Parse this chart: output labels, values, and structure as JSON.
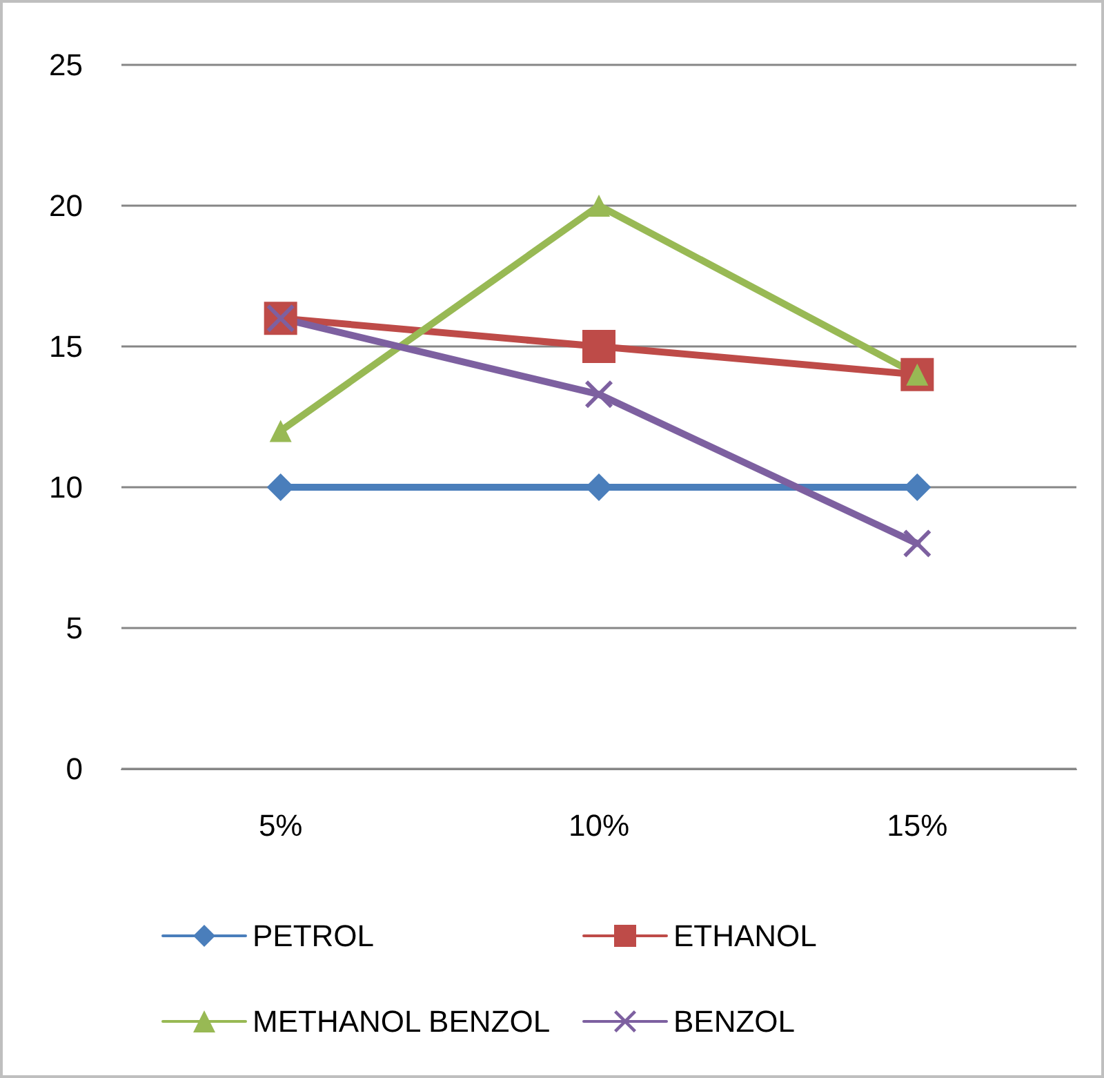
{
  "chart_data": {
    "type": "line",
    "categories": [
      "5%",
      "10%",
      "15%"
    ],
    "series": [
      {
        "name": "PETROL",
        "color": "#4a7ebb",
        "marker": "diamond",
        "values": [
          10,
          10,
          10
        ]
      },
      {
        "name": "ETHANOL",
        "color": "#be4b48",
        "marker": "square",
        "values": [
          16,
          15,
          14
        ]
      },
      {
        "name": "METHANOL BENZOL",
        "color": "#98b954",
        "marker": "triangle",
        "values": [
          12,
          20,
          14
        ]
      },
      {
        "name": "BENZOL",
        "color": "#7d60a0",
        "marker": "cross",
        "values": [
          16,
          13.3,
          8
        ]
      }
    ],
    "ylim": [
      0,
      25
    ],
    "yticks": [
      0,
      5,
      10,
      15,
      20,
      25
    ],
    "grid": "y",
    "legend": "bottom",
    "line_style": "solid"
  }
}
